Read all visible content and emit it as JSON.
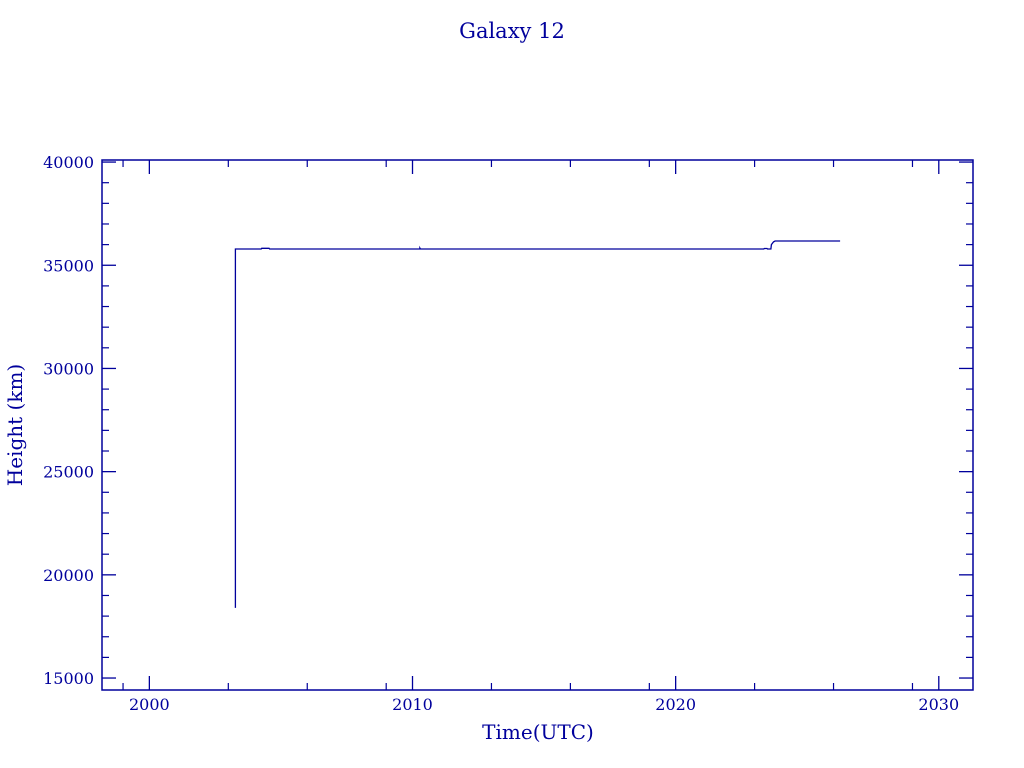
{
  "chart_data": {
    "type": "line",
    "title": "Galaxy 12",
    "xlabel": "Time(UTC)",
    "ylabel": "Height (km)",
    "xlim": [
      1998.2,
      2031.3
    ],
    "ylim": [
      14420,
      40100
    ],
    "xticks": [
      2000,
      2010,
      2020,
      2030
    ],
    "yticks": [
      15000,
      20000,
      25000,
      30000,
      35000,
      40000
    ],
    "grid": false,
    "color": "#00009c",
    "series": [
      {
        "x": [
          2003.27,
          2003.27,
          2004.25,
          2004.27,
          2004.55,
          2004.57,
          2010.28,
          2010.28,
          2010.3,
          2023.35,
          2023.37,
          2023.47,
          2023.49,
          2023.62,
          2023.64,
          2023.72,
          2023.78,
          2026.25
        ],
        "y": [
          18400,
          35787,
          35787,
          35820,
          35820,
          35787,
          35787,
          35830,
          35787,
          35787,
          35810,
          35810,
          35787,
          35787,
          36000,
          36130,
          36175,
          36175
        ]
      }
    ]
  }
}
